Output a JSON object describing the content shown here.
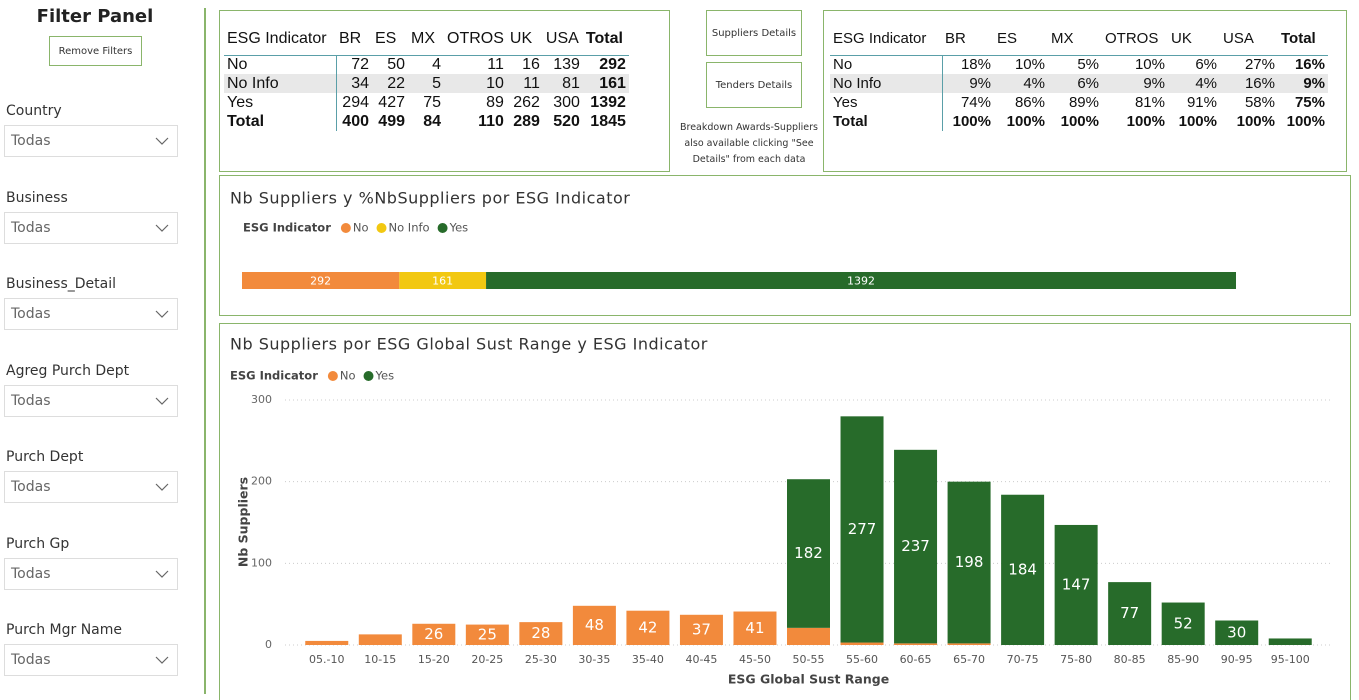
{
  "filter_panel": {
    "title": "Filter Panel",
    "button": "Remove Filters",
    "filters": [
      {
        "label": "Country",
        "value": "Todas"
      },
      {
        "label": "Business",
        "value": "Todas"
      },
      {
        "label": "Business_Detail",
        "value": "Todas"
      },
      {
        "label": "Agreg Purch Dept",
        "value": "Todas"
      },
      {
        "label": "Purch Dept",
        "value": "Todas"
      },
      {
        "label": "Purch Gp",
        "value": "Todas"
      },
      {
        "label": "Purch Mgr Name",
        "value": "Todas"
      }
    ]
  },
  "summary_table": {
    "header": [
      "ESG Indicator",
      "BR",
      "ES",
      "MX",
      "OTROS",
      "UK",
      "USA",
      "Total"
    ],
    "rows": [
      [
        "No",
        "72",
        "50",
        "4",
        "11",
        "16",
        "139",
        "292"
      ],
      [
        "No Info",
        "34",
        "22",
        "5",
        "10",
        "11",
        "81",
        "161"
      ],
      [
        "Yes",
        "294",
        "427",
        "75",
        "89",
        "262",
        "300",
        "1392"
      ],
      [
        "Total",
        "400",
        "499",
        "84",
        "110",
        "289",
        "520",
        "1845"
      ]
    ]
  },
  "buttons": [
    "Suppliers Details",
    "Tenders Details"
  ],
  "note": "Breakdown Awards-Suppliers also available  clicking \"See Details\" from each data",
  "percent_table": {
    "header": [
      "ESG Indicator",
      "BR",
      "ES",
      "MX",
      "OTROS",
      "UK",
      "USA",
      "Total"
    ],
    "rows": [
      [
        "No",
        "18%",
        "10%",
        "5%",
        "10%",
        "6%",
        "27%",
        "16%"
      ],
      [
        "No Info",
        "9%",
        "4%",
        "6%",
        "9%",
        "4%",
        "16%",
        "9%"
      ],
      [
        "Yes",
        "74%",
        "86%",
        "89%",
        "81%",
        "91%",
        "58%",
        "75%"
      ],
      [
        "Total",
        "100%",
        "100%",
        "100%",
        "100%",
        "100%",
        "100%",
        "100%"
      ]
    ]
  },
  "chart_data": [
    {
      "type": "bar",
      "orientation": "horizontal",
      "stacked": true,
      "title": "Nb Suppliers y %NbSuppliers por ESG Indicator",
      "legend_title": "ESG Indicator",
      "series": [
        {
          "name": "No",
          "color": "#f28a3c",
          "values": [
            292
          ]
        },
        {
          "name": "No Info",
          "color": "#f2c811",
          "values": [
            161
          ]
        },
        {
          "name": "Yes",
          "color": "#276b2a",
          "values": [
            1392
          ]
        }
      ]
    },
    {
      "type": "bar",
      "orientation": "vertical",
      "stacked": true,
      "title": "Nb Suppliers por ESG Global Sust Range y ESG Indicator",
      "legend_title": "ESG Indicator",
      "x_label": "ESG Global Sust Range",
      "y_label": "Nb Suppliers",
      "categories": [
        "05.-10",
        "10-15",
        "15-20",
        "20-25",
        "25-30",
        "30-35",
        "35-40",
        "40-45",
        "45-50",
        "50-55",
        "55-60",
        "60-65",
        "65-70",
        "70-75",
        "75-80",
        "80-85",
        "85-90",
        "90-95",
        "95-100"
      ],
      "series": [
        {
          "name": "No",
          "color": "#f28a3c",
          "values": [
            5,
            13,
            26,
            25,
            28,
            48,
            42,
            37,
            41,
            21,
            3,
            2,
            2,
            0,
            0,
            0,
            0,
            0,
            0
          ],
          "value_labels": [
            null,
            null,
            "26",
            "25",
            "28",
            "48",
            "42",
            "37",
            "41",
            null,
            null,
            null,
            null,
            null,
            null,
            null,
            null,
            null,
            null
          ]
        },
        {
          "name": "Yes",
          "color": "#276b2a",
          "values": [
            0,
            0,
            0,
            0,
            0,
            0,
            0,
            0,
            0,
            182,
            277,
            237,
            198,
            184,
            147,
            77,
            52,
            30,
            8
          ],
          "value_labels": [
            null,
            null,
            null,
            null,
            null,
            null,
            null,
            null,
            null,
            "182",
            "277",
            "237",
            "198",
            "184",
            "147",
            "77",
            "52",
            "30",
            null
          ]
        }
      ],
      "ylim": [
        0,
        300
      ],
      "yticks": [
        0,
        100,
        200,
        300
      ],
      "grid": true
    }
  ]
}
